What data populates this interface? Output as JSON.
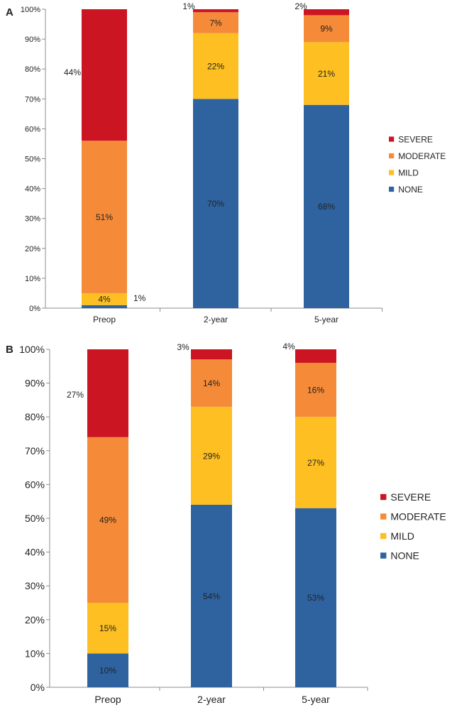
{
  "colors": {
    "none": "#2f63a0",
    "mild": "#fdbf22",
    "moderate": "#f58b38",
    "severe": "#cc1522",
    "axis": "#8c8c8c",
    "text": "#222222"
  },
  "chart_data": [
    {
      "type": "bar",
      "stacked": true,
      "panel_label": "A",
      "categories": [
        "Preop",
        "2-year",
        "5-year"
      ],
      "ylim": [
        0,
        100
      ],
      "yticks": [
        "0%",
        "10%",
        "20%",
        "30%",
        "40%",
        "50%",
        "60%",
        "70%",
        "80%",
        "90%",
        "100%"
      ],
      "legend_position": "right",
      "series": [
        {
          "name": "NONE",
          "color": "#2f63a0",
          "values": [
            1,
            70,
            68
          ],
          "labels": [
            "1%",
            "70%",
            "68%"
          ]
        },
        {
          "name": "MILD",
          "color": "#fdbf22",
          "values": [
            4,
            22,
            21
          ],
          "labels": [
            "4%",
            "22%",
            "21%"
          ]
        },
        {
          "name": "MODERATE",
          "color": "#f58b38",
          "values": [
            51,
            7,
            9
          ],
          "labels": [
            "51%",
            "7%",
            "9%"
          ]
        },
        {
          "name": "SEVERE",
          "color": "#cc1522",
          "values": [
            44,
            1,
            2
          ],
          "labels": [
            "44%",
            "1%",
            "2%"
          ]
        }
      ]
    },
    {
      "type": "bar",
      "stacked": true,
      "panel_label": "B",
      "categories": [
        "Preop",
        "2-year",
        "5-year"
      ],
      "ylim": [
        0,
        100
      ],
      "yticks": [
        "0%",
        "10%",
        "20%",
        "30%",
        "40%",
        "50%",
        "60%",
        "70%",
        "80%",
        "90%",
        "100%"
      ],
      "legend_position": "right",
      "series": [
        {
          "name": "NONE",
          "color": "#2f63a0",
          "values": [
            10,
            54,
            53
          ],
          "labels": [
            "10%",
            "54%",
            "53%"
          ]
        },
        {
          "name": "MILD",
          "color": "#fdbf22",
          "values": [
            15,
            29,
            27
          ],
          "labels": [
            "15%",
            "29%",
            "27%"
          ]
        },
        {
          "name": "MODERATE",
          "color": "#f58b38",
          "values": [
            49,
            14,
            16
          ],
          "labels": [
            "49%",
            "14%",
            "16%"
          ]
        },
        {
          "name": "SEVERE",
          "color": "#cc1522",
          "values": [
            27,
            3,
            4
          ],
          "labels": [
            "27%",
            "3%",
            "4%"
          ]
        }
      ]
    }
  ]
}
